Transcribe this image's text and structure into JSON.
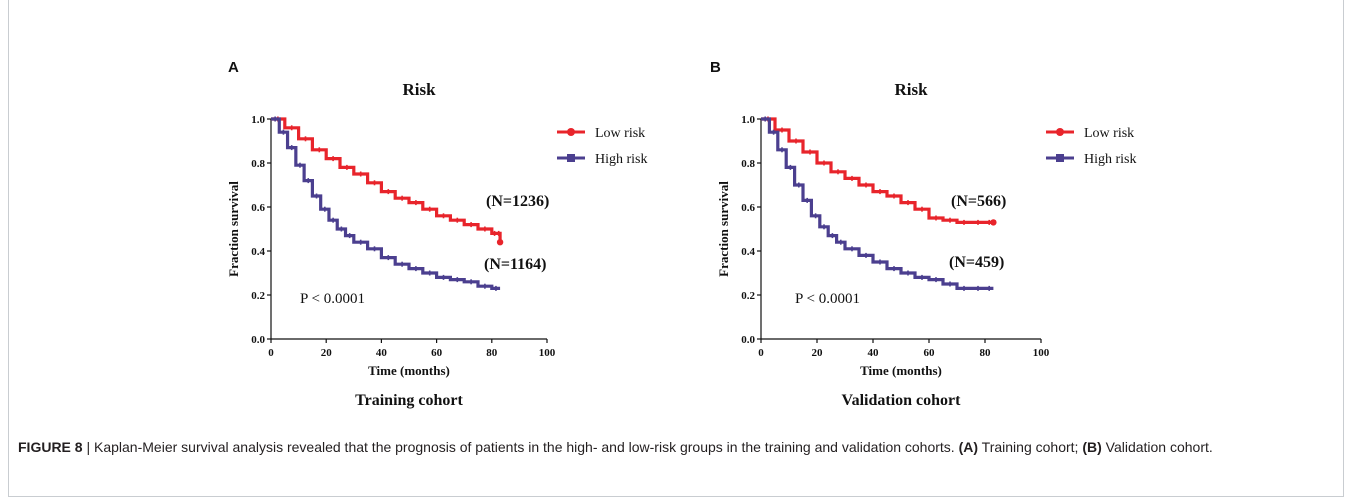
{
  "chart_data": [
    {
      "type": "line",
      "panel_letter": "A",
      "title": "Risk",
      "subtitle": "Training cohort",
      "xlabel": "Time (months)",
      "ylabel": "Fraction survival",
      "xlim": [
        0,
        100
      ],
      "ylim": [
        0,
        1
      ],
      "xticks": [
        "0",
        "20",
        "40",
        "60",
        "80",
        "100"
      ],
      "yticks": [
        "0.0",
        "0.2",
        "0.4",
        "0.6",
        "0.8",
        "1.0"
      ],
      "legend": "top-right",
      "pvalue": "P < 0.0001",
      "series": [
        {
          "name": "Low risk",
          "color": "#e8242b",
          "n_label": "(N=1236)",
          "x": [
            0,
            5,
            10,
            15,
            20,
            25,
            30,
            35,
            40,
            45,
            50,
            55,
            60,
            65,
            70,
            75,
            80,
            82,
            83
          ],
          "y": [
            1.0,
            0.96,
            0.91,
            0.86,
            0.82,
            0.78,
            0.75,
            0.71,
            0.67,
            0.64,
            0.62,
            0.59,
            0.56,
            0.54,
            0.52,
            0.5,
            0.48,
            0.48,
            0.44
          ]
        },
        {
          "name": "High risk",
          "color": "#4b3f8f",
          "n_label": "(N=1164)",
          "x": [
            0,
            3,
            6,
            9,
            12,
            15,
            18,
            21,
            24,
            27,
            30,
            35,
            40,
            45,
            50,
            55,
            60,
            65,
            70,
            75,
            80,
            83
          ],
          "y": [
            1.0,
            0.94,
            0.87,
            0.79,
            0.72,
            0.65,
            0.59,
            0.54,
            0.5,
            0.47,
            0.44,
            0.41,
            0.37,
            0.34,
            0.32,
            0.3,
            0.28,
            0.27,
            0.26,
            0.24,
            0.23,
            0.23
          ]
        }
      ]
    },
    {
      "type": "line",
      "panel_letter": "B",
      "title": "Risk",
      "subtitle": "Validation cohort",
      "xlabel": "Time (months)",
      "ylabel": "Fraction survival",
      "xlim": [
        0,
        100
      ],
      "ylim": [
        0,
        1
      ],
      "xticks": [
        "0",
        "20",
        "40",
        "60",
        "80",
        "100"
      ],
      "yticks": [
        "0.0",
        "0.2",
        "0.4",
        "0.6",
        "0.8",
        "1.0"
      ],
      "legend": "top-right",
      "pvalue": "P < 0.0001",
      "series": [
        {
          "name": "Low risk",
          "color": "#e8242b",
          "n_label": "(N=566)",
          "x": [
            0,
            5,
            10,
            15,
            20,
            25,
            30,
            35,
            40,
            45,
            50,
            55,
            60,
            65,
            70,
            75,
            80,
            83
          ],
          "y": [
            1.0,
            0.95,
            0.9,
            0.85,
            0.8,
            0.76,
            0.73,
            0.7,
            0.67,
            0.65,
            0.62,
            0.59,
            0.55,
            0.54,
            0.53,
            0.53,
            0.53,
            0.53
          ]
        },
        {
          "name": "High risk",
          "color": "#4b3f8f",
          "n_label": "(N=459)",
          "x": [
            0,
            3,
            6,
            9,
            12,
            15,
            18,
            21,
            24,
            27,
            30,
            35,
            40,
            45,
            50,
            55,
            60,
            65,
            70,
            75,
            80,
            83
          ],
          "y": [
            1.0,
            0.94,
            0.86,
            0.78,
            0.7,
            0.63,
            0.56,
            0.51,
            0.47,
            0.44,
            0.41,
            0.38,
            0.35,
            0.32,
            0.3,
            0.28,
            0.27,
            0.25,
            0.23,
            0.23,
            0.23,
            0.23
          ]
        }
      ]
    }
  ],
  "caption": {
    "lead": "FIGURE 8",
    "separator": " | ",
    "text": "Kaplan-Meier survival analysis revealed that the prognosis of patients in the high- and low-risk groups in the training and validation cohorts. ",
    "a_tag": "(A)",
    "a_text": " Training cohort; ",
    "b_tag": "(B)",
    "b_text": " Validation cohort."
  }
}
